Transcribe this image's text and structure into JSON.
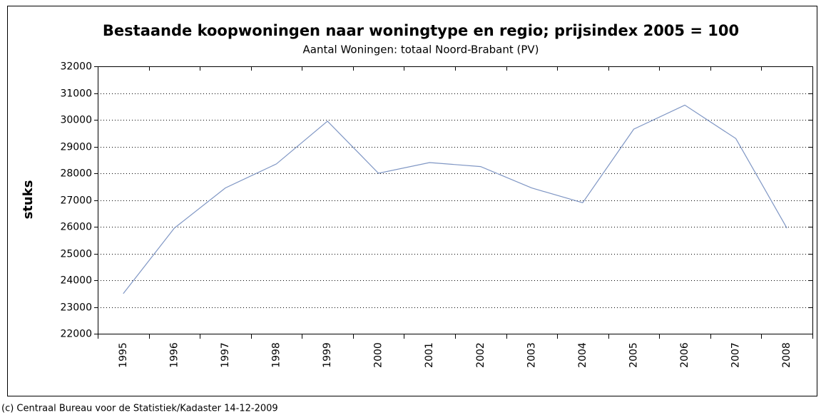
{
  "chart_data": {
    "type": "line",
    "title": "Bestaande koopwoningen naar woningtype en regio; prijsindex 2005 = 100",
    "subtitle": "Aantal Woningen: totaal Noord-Brabant (PV)",
    "y_label": "stuks",
    "source": "(c) Centraal Bureau voor de Statistiek/Kadaster 14-12-2009",
    "categories": [
      "1995",
      "1996",
      "1997",
      "1998",
      "1999",
      "2000",
      "2001",
      "2002",
      "2003",
      "2004",
      "2005",
      "2006",
      "2007",
      "2008"
    ],
    "values": [
      23500,
      25950,
      27450,
      28350,
      29950,
      28000,
      28400,
      28250,
      27450,
      26900,
      29650,
      30550,
      29300,
      25950
    ],
    "color": "#7f96c4",
    "ylim": [
      22000,
      32000
    ],
    "yticks": [
      22000,
      23000,
      24000,
      25000,
      26000,
      27000,
      28000,
      29000,
      30000,
      31000,
      32000
    ],
    "grid": true
  }
}
